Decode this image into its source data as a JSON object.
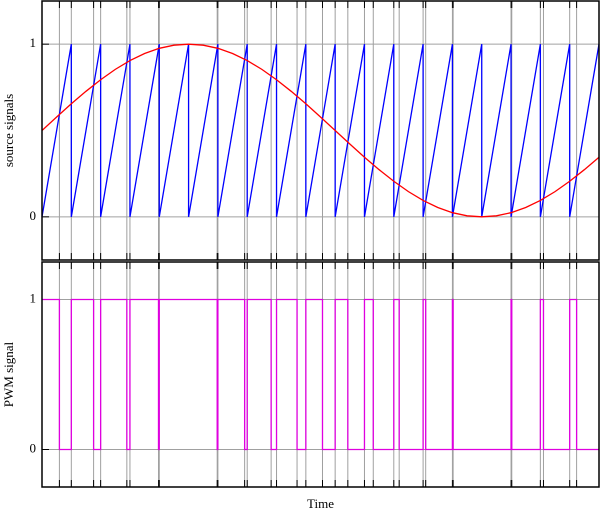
{
  "chart_data": [
    {
      "type": "line",
      "ylabel": "source signals",
      "xlim": [
        0,
        0.95
      ],
      "ylim": [
        -0.25,
        1.25
      ],
      "yticks": [
        0,
        1
      ],
      "grid": true,
      "series": [
        {
          "color": "#0000ff",
          "x": [
            0,
            0.05,
            0.05,
            0.1,
            0.1,
            0.15,
            0.15,
            0.2,
            0.2,
            0.25,
            0.25,
            0.3,
            0.3,
            0.35,
            0.35,
            0.4,
            0.4,
            0.45,
            0.45,
            0.5,
            0.5,
            0.55,
            0.55,
            0.6,
            0.6,
            0.65,
            0.65,
            0.7,
            0.7,
            0.75,
            0.75,
            0.8,
            0.8,
            0.85,
            0.85,
            0.9,
            0.9,
            0.95
          ],
          "values": [
            0,
            1,
            0,
            1,
            0,
            1,
            0,
            1,
            0,
            1,
            0,
            1,
            0,
            1,
            0,
            1,
            0,
            1,
            0,
            1,
            0,
            1,
            0,
            1,
            0,
            1,
            0,
            1,
            0,
            1,
            0,
            1,
            0,
            1,
            0,
            1,
            0,
            1
          ]
        },
        {
          "color": "#ff0000",
          "x": [
            0,
            0.025,
            0.05,
            0.075,
            0.1,
            0.125,
            0.15,
            0.175,
            0.2,
            0.225,
            0.25,
            0.275,
            0.3,
            0.325,
            0.35,
            0.375,
            0.4,
            0.425,
            0.45,
            0.475,
            0.5,
            0.525,
            0.55,
            0.575,
            0.6,
            0.625,
            0.65,
            0.675,
            0.7,
            0.725,
            0.75,
            0.775,
            0.8,
            0.825,
            0.85,
            0.875,
            0.9,
            0.925,
            0.95
          ],
          "values": [
            0.5,
            0.578,
            0.655,
            0.727,
            0.794,
            0.854,
            0.905,
            0.946,
            0.976,
            0.994,
            1,
            0.994,
            0.976,
            0.946,
            0.905,
            0.854,
            0.794,
            0.727,
            0.655,
            0.578,
            0.5,
            0.422,
            0.345,
            0.273,
            0.206,
            0.146,
            0.095,
            0.054,
            0.024,
            0.006,
            0,
            0.006,
            0.024,
            0.054,
            0.095,
            0.146,
            0.206,
            0.273,
            0.345
          ]
        }
      ]
    },
    {
      "type": "line",
      "ylabel": "PWM signal",
      "xlabel": "Time",
      "xlim": [
        0,
        0.95
      ],
      "ylim": [
        -0.25,
        1.25
      ],
      "yticks": [
        0,
        1
      ],
      "grid": true,
      "series": [
        {
          "color": "#e000e0",
          "x": [
            0,
            0.0297,
            0.0297,
            0.05,
            0.05,
            0.088,
            0.088,
            0.1,
            0.1,
            0.1447,
            0.1447,
            0.15,
            0.15,
            0.1987,
            0.1987,
            0.2,
            0.2,
            0.2988,
            0.2988,
            0.3,
            0.3,
            0.3456,
            0.3456,
            0.35,
            0.35,
            0.3908,
            0.3908,
            0.4,
            0.4,
            0.435,
            0.435,
            0.45,
            0.45,
            0.4784,
            0.4784,
            0.5,
            0.5,
            0.5216,
            0.5216,
            0.55,
            0.55,
            0.565,
            0.565,
            0.6,
            0.6,
            0.6092,
            0.6092,
            0.65,
            0.65,
            0.6544,
            0.6544,
            0.7,
            0.7,
            0.7012,
            0.7012,
            0.8,
            0.8,
            0.8012,
            0.8012,
            0.85,
            0.85,
            0.8553,
            0.8553,
            0.9,
            0.9,
            0.9118,
            0.9118,
            0.95
          ],
          "values": [
            1,
            1,
            0,
            0,
            1,
            1,
            0,
            0,
            1,
            1,
            0,
            0,
            1,
            1,
            0,
            0,
            1,
            1,
            0,
            0,
            1,
            1,
            0,
            0,
            1,
            1,
            0,
            0,
            1,
            1,
            0,
            0,
            1,
            1,
            0,
            0,
            1,
            1,
            0,
            0,
            1,
            1,
            0,
            0,
            1,
            1,
            0,
            0,
            1,
            1,
            0,
            0,
            1,
            1,
            0,
            0,
            1,
            1,
            0,
            0,
            1,
            1,
            0,
            0,
            1,
            1,
            0,
            0
          ]
        }
      ]
    }
  ]
}
